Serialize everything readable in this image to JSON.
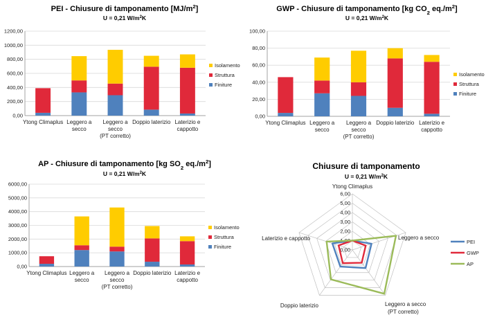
{
  "chart_data": [
    {
      "type": "bar",
      "stacked": true,
      "title": "PEI - Chiusure di tamponamento [MJ/m²]",
      "subtitle": "U = 0,21 W/m²K",
      "ylim": [
        0,
        1200
      ],
      "yticks": [
        "0,00",
        "200,00",
        "400,00",
        "600,00",
        "800,00",
        "1000,00",
        "1200,00"
      ],
      "grid": true,
      "legend_position": "right",
      "categories": [
        [
          "Ytong Climaplus"
        ],
        [
          "Leggero a",
          "secco"
        ],
        [
          "Leggero a",
          "secco",
          "(PT corretto)"
        ],
        [
          "Doppio  laterizio"
        ],
        [
          "Laterizio e",
          "cappotto"
        ]
      ],
      "series": [
        {
          "name": "Finiture",
          "color": "#4f81bd",
          "values": [
            40,
            330,
            290,
            85,
            30
          ]
        },
        {
          "name": "Struttura",
          "color": "#e0293a",
          "values": [
            350,
            170,
            165,
            610,
            650
          ]
        },
        {
          "name": "Isolamento",
          "color": "#ffcc00",
          "values": [
            0,
            345,
            480,
            155,
            190
          ]
        }
      ]
    },
    {
      "type": "bar",
      "stacked": true,
      "title": "GWP - Chiusure di tamponamento [kg CO₂ eq./m²]",
      "subtitle": "U = 0,21 W/m²K",
      "ylim": [
        0,
        100
      ],
      "yticks": [
        "0,00",
        "20,00",
        "40,00",
        "60,00",
        "80,00",
        "100,00"
      ],
      "grid": true,
      "legend_position": "right",
      "categories": [
        [
          "Ytong Climaplus"
        ],
        [
          "Leggero a",
          "secco"
        ],
        [
          "Leggero a",
          "secco",
          "(PT corretto)"
        ],
        [
          "Doppio  laterizio"
        ],
        [
          "Laterizio e",
          "cappotto"
        ]
      ],
      "series": [
        {
          "name": "Finiture",
          "color": "#4f81bd",
          "values": [
            4,
            27,
            24,
            10,
            3
          ]
        },
        {
          "name": "Struttura",
          "color": "#e0293a",
          "values": [
            42,
            15,
            16,
            58,
            61
          ]
        },
        {
          "name": "Isolamento",
          "color": "#ffcc00",
          "values": [
            0,
            27,
            37,
            12,
            8
          ]
        }
      ]
    },
    {
      "type": "bar",
      "stacked": true,
      "title": "AP - Chiusure di tamponamento [kg SO₂ eq./m²]",
      "subtitle": "U = 0,21 W/m²K",
      "ylim": [
        0,
        6000
      ],
      "yticks": [
        "0,00",
        "1000,00",
        "2000,00",
        "3000,00",
        "4000,00",
        "5000,00",
        "6000,00"
      ],
      "grid": true,
      "legend_position": "right",
      "categories": [
        [
          "Ytong Climaplus"
        ],
        [
          "Leggero a",
          "secco"
        ],
        [
          "Leggero a",
          "secco",
          "(PT corretto)"
        ],
        [
          "Doppio  laterizio"
        ],
        [
          "Laterizio e",
          "cappotto"
        ]
      ],
      "series": [
        {
          "name": "Finiture",
          "color": "#4f81bd",
          "values": [
            200,
            1200,
            1100,
            350,
            150
          ]
        },
        {
          "name": "Struttura",
          "color": "#e0293a",
          "values": [
            550,
            350,
            350,
            1700,
            1700
          ]
        },
        {
          "name": "Isolamento",
          "color": "#ffcc00",
          "values": [
            0,
            2100,
            2850,
            900,
            350
          ]
        }
      ]
    },
    {
      "type": "radar",
      "title": "Chiusure di tamponamento",
      "subtitle": "U = 0,21 W/m²K",
      "rlim": [
        0,
        6
      ],
      "rticks": [
        "0,00",
        "1,00",
        "2,00",
        "3,00",
        "4,00",
        "5,00",
        "6,00"
      ],
      "legend_position": "right",
      "axes": [
        [
          "Ytong Climaplus"
        ],
        [
          "Leggero a secco"
        ],
        [
          "Leggero a secco",
          "(PT corretto)"
        ],
        [
          "Doppio laterizio"
        ],
        [
          "Laterizio e cappotto"
        ]
      ],
      "series": [
        {
          "name": "PEI",
          "color": "#4f81bd",
          "values": [
            1.0,
            2.15,
            2.4,
            2.2,
            2.25
          ]
        },
        {
          "name": "GWP",
          "color": "#e0293a",
          "values": [
            1.0,
            1.5,
            1.7,
            1.75,
            1.55
          ]
        },
        {
          "name": "AP",
          "color": "#9bbb59",
          "values": [
            1.0,
            4.9,
            5.8,
            3.9,
            2.9
          ]
        }
      ]
    }
  ]
}
